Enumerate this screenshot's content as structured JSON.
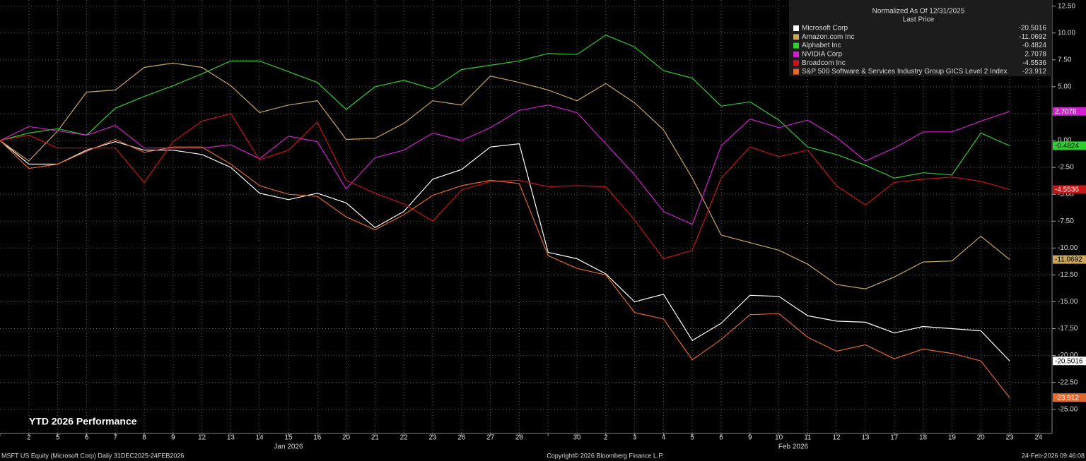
{
  "chart_data": {
    "type": "line",
    "annotation": "YTD 2026 Performance",
    "legend_title": "Normalized As Of 12/31/2025",
    "legend_subtitle": "Last Price",
    "month_labels": [
      "Jan 2026",
      "Feb 2026"
    ],
    "footer_left": "MSFT US Equity (Microsoft Corp) Daily 31DEC2025-24FEB2026",
    "footer_center": "Copyright© 2026 Bloomberg Finance L.P.",
    "footer_right": "24-Feb-2026 09:46:08",
    "grid": true,
    "legend": "top-right",
    "categories": [
      null,
      "2",
      "5",
      "6",
      "7",
      "8",
      "9",
      "12",
      "13",
      "14",
      "15",
      "16",
      "20",
      "21",
      "22",
      "23",
      "26",
      "27",
      "28",
      null,
      "30",
      "2",
      "3",
      "4",
      "5",
      "6",
      "9",
      "10",
      "11",
      "12",
      "13",
      "17",
      "18",
      "19",
      "20",
      "23",
      "24"
    ],
    "ylim": [
      -27.25,
      13.07
    ],
    "yticks": [
      {
        "value": 12.5,
        "label": "12.50"
      },
      {
        "value": 10,
        "label": "10.00"
      },
      {
        "value": 7.5,
        "label": "7.50"
      },
      {
        "value": 5,
        "label": "5.00"
      },
      {
        "value": 2.5,
        "label": "2.50"
      },
      {
        "value": 0,
        "label": "0.00"
      },
      {
        "value": -2.5,
        "label": "-2.50"
      },
      {
        "value": -5,
        "label": "-5.00"
      },
      {
        "value": -7.5,
        "label": "-7.50"
      },
      {
        "value": -10,
        "label": "-10.00"
      },
      {
        "value": -12.5,
        "label": "-12.50"
      },
      {
        "value": -15,
        "label": "-15.00"
      },
      {
        "value": -17.5,
        "label": "-17.50"
      },
      {
        "value": -20,
        "label": "-20.00"
      },
      {
        "value": -22.5,
        "label": "-22.50"
      },
      {
        "value": -25,
        "label": "-25.00"
      }
    ],
    "series": [
      {
        "name": "Microsoft Corp",
        "color": "#ffffff",
        "values": [
          0,
          -2.2,
          -2.2,
          -0.9,
          -0.1,
          -0.9,
          -0.9,
          -1.3,
          -2.5,
          -4.9,
          -5.5,
          -4.9,
          -5.8,
          -8.1,
          -6.6,
          -3.6,
          -2.7,
          -0.6,
          -0.3,
          -10.4,
          -11.0,
          -12.4,
          -15.0,
          -14.3,
          -18.6,
          -17.0,
          -14.4,
          -14.5,
          -16.3,
          -16.8,
          -16.9,
          -17.9,
          -17.3,
          -17.5,
          -17.7,
          -20.5016,
          null
        ]
      },
      {
        "name": "Amazon.com Inc",
        "color": "#c9a560",
        "values": [
          0,
          -1.9,
          0.9,
          4.5,
          4.7,
          6.8,
          7.2,
          6.8,
          5.1,
          2.6,
          3.3,
          3.7,
          0.1,
          0.2,
          1.6,
          3.7,
          3.3,
          6.0,
          5.4,
          4.7,
          3.7,
          5.3,
          3.5,
          1.0,
          -3.5,
          -8.8,
          -9.5,
          -10.2,
          -11.5,
          -13.4,
          -13.8,
          -12.7,
          -11.3,
          -11.2,
          -8.9,
          -11.0692,
          null
        ]
      },
      {
        "name": "Alphabet Inc",
        "color": "#2fcf2f",
        "values": [
          0,
          0.7,
          1.1,
          0.5,
          3.0,
          4.1,
          5.1,
          6.2,
          7.4,
          7.4,
          6.4,
          5.4,
          2.9,
          5.0,
          5.6,
          4.8,
          6.6,
          7.0,
          7.4,
          8.1,
          8.0,
          9.8,
          8.7,
          6.5,
          5.8,
          3.2,
          3.6,
          1.9,
          -0.6,
          -1.3,
          -2.3,
          -3.5,
          -3.0,
          -3.2,
          0.7,
          -0.4824,
          null
        ]
      },
      {
        "name": "NVIDIA Corp",
        "color": "#d11fd1",
        "values": [
          0,
          1.3,
          0.9,
          0.5,
          1.4,
          -0.7,
          -0.7,
          -0.7,
          -0.4,
          -1.7,
          0.4,
          -0.1,
          -4.5,
          -1.6,
          -0.9,
          0.7,
          0.0,
          1.2,
          2.8,
          3.3,
          2.6,
          -0.3,
          -3.2,
          -6.6,
          -7.8,
          -0.5,
          2.0,
          1.2,
          1.9,
          0.3,
          -1.9,
          -0.7,
          0.8,
          0.8,
          1.8,
          2.7078,
          null
        ]
      },
      {
        "name": "Broadcom Inc",
        "color": "#c81414",
        "values": [
          0,
          0.5,
          -0.7,
          -0.7,
          -0.7,
          -3.9,
          -0.1,
          1.8,
          2.5,
          -1.8,
          -0.9,
          1.7,
          -3.7,
          -4.9,
          -5.9,
          -7.5,
          -4.6,
          -3.8,
          -3.7,
          -4.3,
          -4.2,
          -4.3,
          -7.4,
          -11.0,
          -10.2,
          -3.5,
          -0.6,
          -1.5,
          -0.9,
          -4.2,
          -6.0,
          -3.9,
          -3.6,
          -3.4,
          -3.8,
          -4.5536,
          null
        ]
      },
      {
        "name": "S&P 500 Software & Services Industry Group GICS Level 2 Index",
        "color": "#e2672a",
        "values": [
          0,
          -2.6,
          -2.2,
          -1.0,
          0.1,
          -1.1,
          -0.6,
          -0.6,
          -2.2,
          -4.2,
          -5.0,
          -5.2,
          -7.1,
          -8.3,
          -6.9,
          -5.1,
          -4.2,
          -3.7,
          -4.0,
          -10.7,
          -11.9,
          -12.5,
          -16.0,
          -16.6,
          -20.4,
          -18.5,
          -16.2,
          -16.1,
          -18.3,
          -19.6,
          -19.0,
          -20.3,
          -19.4,
          -19.8,
          -20.5,
          -23.912,
          null
        ]
      }
    ]
  }
}
